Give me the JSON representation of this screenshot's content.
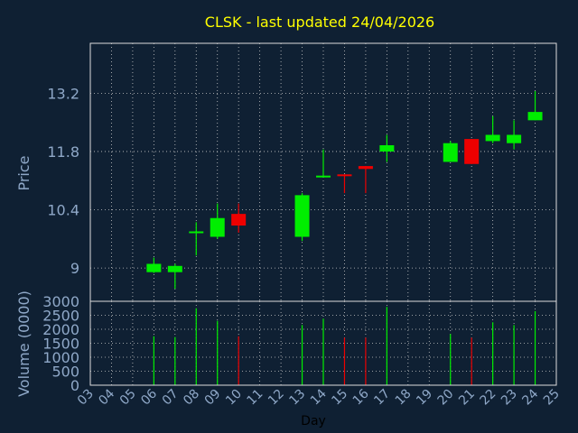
{
  "chart_data": {
    "type": "candlestick",
    "title": "CLSK - last updated 24/04/2026",
    "xlabel": "Day",
    "price_ylabel": "Price",
    "volume_ylabel": "Volume (0000)",
    "x_ticks": [
      "03",
      "04",
      "05",
      "06",
      "07",
      "08",
      "09",
      "10",
      "11",
      "12",
      "13",
      "14",
      "15",
      "16",
      "17",
      "18",
      "19",
      "20",
      "21",
      "22",
      "23",
      "24",
      "25"
    ],
    "x_range": [
      3,
      25
    ],
    "price_ylim": [
      8.2,
      14.4
    ],
    "price_ticks": [
      "9",
      "10.4",
      "11.8",
      "13.2"
    ],
    "volume_ylim": [
      0,
      3000
    ],
    "volume_ticks": [
      "0",
      "500",
      "1000",
      "1500",
      "2000",
      "2500",
      "3000"
    ],
    "grid": true,
    "colors": {
      "up": "#00ee00",
      "down": "#ee0000",
      "background": "#0f2033",
      "title": "#ffff00",
      "axis_text": "#8fa8c8"
    },
    "candles": [
      {
        "day": 6,
        "open": 8.9,
        "high": 9.25,
        "low": 8.88,
        "close": 9.1,
        "volume": 1750
      },
      {
        "day": 7,
        "open": 8.9,
        "high": 9.1,
        "low": 8.5,
        "close": 9.05,
        "volume": 1720
      },
      {
        "day": 8,
        "open": 9.85,
        "high": 10.1,
        "low": 9.3,
        "close": 9.88,
        "volume": 2750
      },
      {
        "day": 9,
        "open": 9.75,
        "high": 10.55,
        "low": 9.7,
        "close": 10.2,
        "volume": 2300
      },
      {
        "day": 10,
        "open": 10.3,
        "high": 10.55,
        "low": 9.85,
        "close": 10.02,
        "volume": 1750
      },
      {
        "day": 13,
        "open": 9.75,
        "high": 10.8,
        "low": 9.65,
        "close": 10.75,
        "volume": 2150
      },
      {
        "day": 14,
        "open": 11.2,
        "high": 11.85,
        "low": 11.2,
        "close": 11.22,
        "volume": 2380
      },
      {
        "day": 15,
        "open": 11.25,
        "high": 11.25,
        "low": 10.8,
        "close": 11.22,
        "volume": 1700
      },
      {
        "day": 16,
        "open": 11.45,
        "high": 11.45,
        "low": 10.8,
        "close": 11.38,
        "volume": 1700
      },
      {
        "day": 17,
        "open": 11.8,
        "high": 12.2,
        "low": 11.55,
        "close": 11.95,
        "volume": 2800
      },
      {
        "day": 20,
        "open": 11.55,
        "high": 12.05,
        "low": 11.55,
        "close": 12.0,
        "volume": 1830
      },
      {
        "day": 21,
        "open": 12.1,
        "high": 12.1,
        "low": 11.5,
        "close": 11.5,
        "volume": 1700
      },
      {
        "day": 22,
        "open": 12.05,
        "high": 12.65,
        "low": 12.0,
        "close": 12.2,
        "volume": 2250
      },
      {
        "day": 23,
        "open": 12.0,
        "high": 12.55,
        "low": 11.85,
        "close": 12.2,
        "volume": 2150
      },
      {
        "day": 24,
        "open": 12.55,
        "high": 13.25,
        "low": 12.55,
        "close": 12.75,
        "volume": 2650
      }
    ]
  }
}
